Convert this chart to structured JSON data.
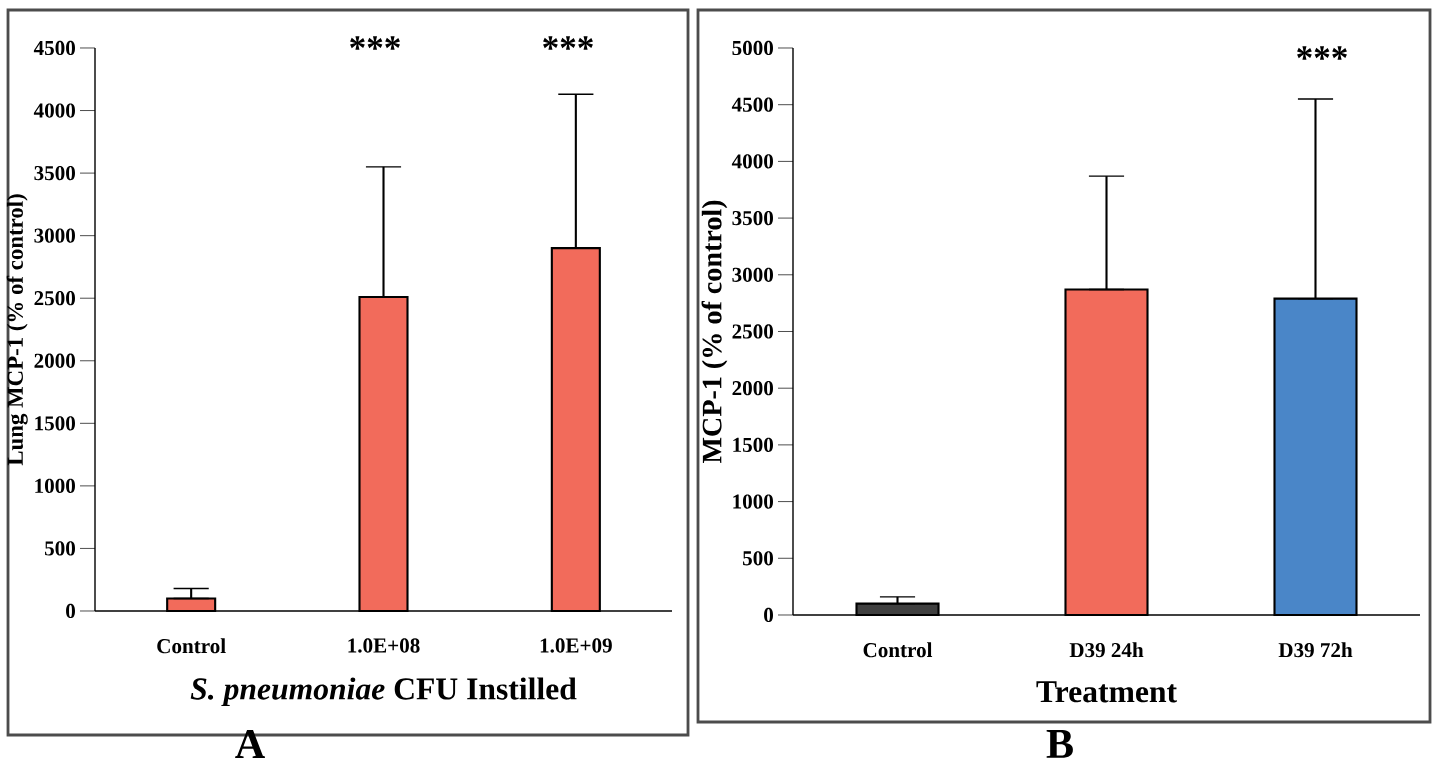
{
  "chart_data": [
    {
      "type": "bar",
      "categories": [
        "Control",
        "1.0E+08",
        "1.0E+09"
      ],
      "values": [
        100,
        2510,
        2900
      ],
      "errors": [
        [
          100,
          180
        ],
        [
          2510,
          3550
        ],
        [
          2900,
          4130
        ]
      ],
      "color": "#f26b5b",
      "xlabel": "*S. pneumoniae* CFU Instilled",
      "ylabel": "Lung MCP-1 (% of control)",
      "ylim": [
        0,
        4500
      ],
      "yticks": [
        0,
        500,
        1000,
        1500,
        2000,
        2500,
        3000,
        3500,
        4000,
        4500
      ],
      "annotations": [
        "***",
        "***",
        "A"
      ]
    },
    {
      "type": "bar",
      "categories": [
        "Control",
        "D39 24h",
        "D39 72h"
      ],
      "values": [
        100,
        2870,
        2790
      ],
      "errors": [
        [
          100,
          160
        ],
        [
          2870,
          3870
        ],
        [
          2790,
          4550
        ]
      ],
      "colors": [
        "#404040",
        "#f26b5b",
        "#4a86c8"
      ],
      "xlabel": "Treatment",
      "ylabel": "MCP-1 (% of control)",
      "ylim": [
        0,
        5000
      ],
      "yticks": [
        0,
        500,
        1000,
        1500,
        2000,
        2500,
        3000,
        3500,
        4000,
        4500,
        5000
      ],
      "annotations": [
        "***",
        "B"
      ]
    }
  ]
}
